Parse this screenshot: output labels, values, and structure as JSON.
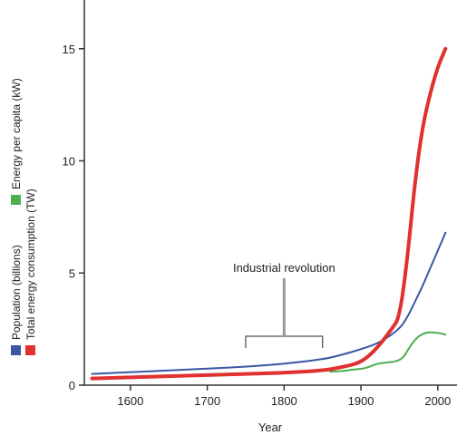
{
  "chart_data": {
    "type": "line",
    "title": "",
    "xlabel": "Year",
    "ylabel": "",
    "xlim": [
      1540,
      2025
    ],
    "ylim": [
      0,
      16
    ],
    "x_ticks": [
      1600,
      1700,
      1800,
      1900,
      2000
    ],
    "y_ticks": [
      0,
      5,
      10,
      15
    ],
    "grid": false,
    "legend": {
      "placement": "left-vertical",
      "entries": [
        {
          "label": "Population (billions)",
          "color": "#3a56a5"
        },
        {
          "label": "Total energy consumption (TW)",
          "color": "#e03030"
        },
        {
          "label": "Energy per capita (kW)",
          "color": "#4caf50"
        }
      ]
    },
    "annotation": {
      "text": "Industrial revolution",
      "x_start": 1750,
      "x_end": 1850
    },
    "series": [
      {
        "name": "Population (billions)",
        "color": "#3a56a5",
        "points": [
          [
            1550,
            0.5
          ],
          [
            1600,
            0.58
          ],
          [
            1650,
            0.66
          ],
          [
            1700,
            0.74
          ],
          [
            1750,
            0.82
          ],
          [
            1800,
            0.95
          ],
          [
            1850,
            1.15
          ],
          [
            1875,
            1.35
          ],
          [
            1900,
            1.6
          ],
          [
            1925,
            1.9
          ],
          [
            1950,
            2.5
          ],
          [
            1960,
            3.0
          ],
          [
            1970,
            3.7
          ],
          [
            1980,
            4.4
          ],
          [
            1990,
            5.2
          ],
          [
            2000,
            6.0
          ],
          [
            2010,
            6.8
          ]
        ]
      },
      {
        "name": "Total energy consumption (TW)",
        "color": "#e03030",
        "points": [
          [
            1550,
            0.3
          ],
          [
            1600,
            0.35
          ],
          [
            1650,
            0.4
          ],
          [
            1700,
            0.45
          ],
          [
            1750,
            0.5
          ],
          [
            1800,
            0.55
          ],
          [
            1850,
            0.65
          ],
          [
            1875,
            0.8
          ],
          [
            1900,
            1.0
          ],
          [
            1920,
            1.6
          ],
          [
            1940,
            2.5
          ],
          [
            1950,
            3.0
          ],
          [
            1960,
            5.5
          ],
          [
            1970,
            9.0
          ],
          [
            1980,
            11.5
          ],
          [
            1990,
            13.0
          ],
          [
            2000,
            14.2
          ],
          [
            2010,
            15.0
          ]
        ]
      },
      {
        "name": "Energy per capita (kW)",
        "color": "#4caf50",
        "points": [
          [
            1860,
            0.6
          ],
          [
            1875,
            0.62
          ],
          [
            1890,
            0.7
          ],
          [
            1900,
            0.72
          ],
          [
            1910,
            0.8
          ],
          [
            1920,
            0.95
          ],
          [
            1930,
            1.0
          ],
          [
            1945,
            1.05
          ],
          [
            1955,
            1.2
          ],
          [
            1965,
            1.8
          ],
          [
            1975,
            2.2
          ],
          [
            1985,
            2.35
          ],
          [
            1995,
            2.35
          ],
          [
            2005,
            2.3
          ],
          [
            2010,
            2.25
          ]
        ]
      }
    ]
  }
}
